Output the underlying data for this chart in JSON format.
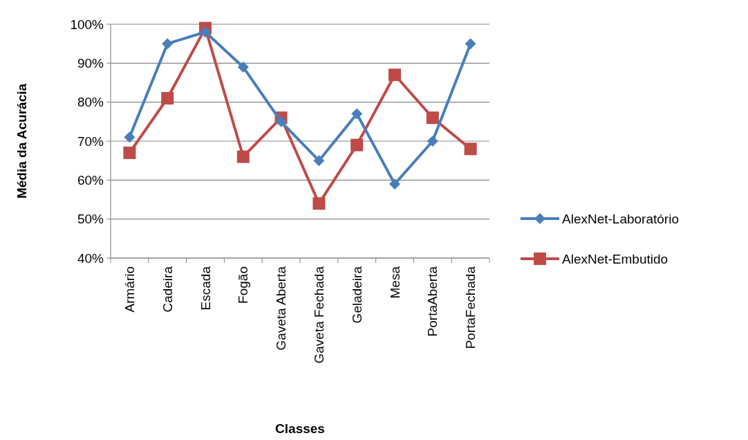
{
  "chart_data": {
    "type": "line",
    "xlabel": "Classes",
    "ylabel": "Média da Acurácia",
    "categories": [
      "Armário",
      "Cadeira",
      "Escada",
      "Fogão",
      "Gaveta Aberta",
      "Gaveta Fechada",
      "Geladeira",
      "Mesa",
      "PortaAberta",
      "PortaFechada"
    ],
    "series": [
      {
        "name": "AlexNet-Laboratório",
        "color": "#4a7ebb",
        "marker": "diamond",
        "values": [
          71,
          95,
          98,
          89,
          75,
          65,
          77,
          59,
          70,
          95
        ]
      },
      {
        "name": "AlexNet-Embutido",
        "color": "#be4b48",
        "marker": "square",
        "values": [
          67,
          81,
          99,
          66,
          76,
          54,
          69,
          87,
          76,
          68
        ]
      }
    ],
    "ylim": [
      40,
      100
    ],
    "yticks": [
      {
        "value": 40,
        "label": "40%"
      },
      {
        "value": 50,
        "label": "50%"
      },
      {
        "value": 60,
        "label": "60%"
      },
      {
        "value": 70,
        "label": "70%"
      },
      {
        "value": 80,
        "label": "80%"
      },
      {
        "value": 90,
        "label": "90%"
      },
      {
        "value": 100,
        "label": "100%"
      }
    ],
    "grid": "y",
    "legend": "right"
  }
}
